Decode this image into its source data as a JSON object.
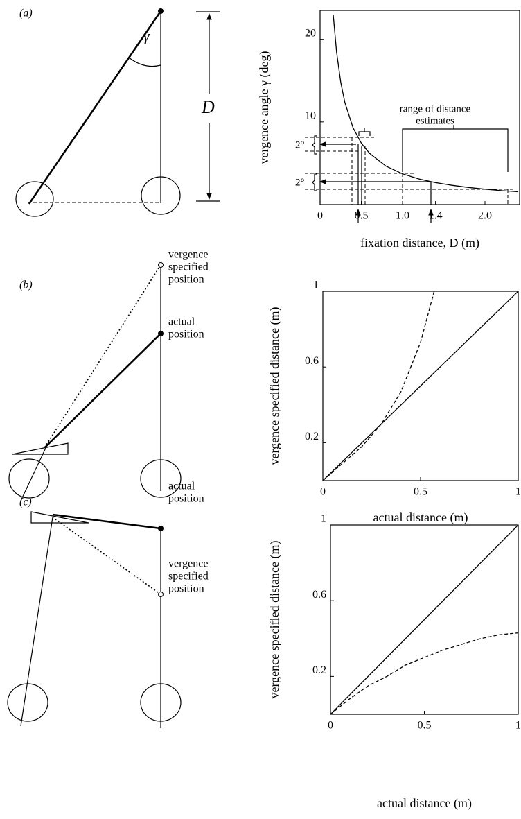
{
  "diagrams": [
    {
      "label": "(a)",
      "angle": "γ",
      "distance": "D"
    },
    {
      "label": "(b)",
      "vergence_label": [
        "vergence",
        "specified",
        "position"
      ],
      "actual_label": [
        "actual",
        "position"
      ]
    },
    {
      "label": "(c)",
      "actual_label": [
        "actual",
        "position"
      ],
      "vergence_label": [
        "vergence",
        "specified",
        "position"
      ]
    }
  ],
  "chart_data": [
    {
      "type": "line",
      "x_label": "fixation distance, D (m)",
      "y_label": "vergence angle γ (deg)",
      "xlim": [
        0,
        2.42
      ],
      "ylim": [
        0,
        23.5
      ],
      "xticks": [
        0,
        0.5,
        {
          "value": 1,
          "label": "1.0"
        },
        1.4,
        {
          "value": 2,
          "label": "2.0"
        }
      ],
      "yticks": [
        10,
        20
      ],
      "annotations": [
        "range of distance",
        "estimates"
      ],
      "bracket_labels": [
        "2°",
        "2°"
      ],
      "series": [
        {
          "line_style": "solid",
          "x": [
            0.16,
            0.2,
            0.25,
            0.3,
            0.4,
            0.5,
            0.6,
            0.8,
            1.0,
            1.2,
            1.4,
            1.6,
            1.8,
            2.0,
            2.2,
            2.4
          ],
          "values": [
            22.96,
            18.46,
            14.81,
            12.37,
            9.29,
            7.44,
            6.2,
            4.65,
            3.72,
            3.1,
            2.66,
            2.33,
            2.07,
            1.86,
            1.69,
            1.55
          ]
        }
      ]
    },
    {
      "type": "line",
      "x_label": "actual distance (m)",
      "y_label": "vergence specified distance (m)",
      "xlim": [
        0,
        1
      ],
      "ylim": [
        0,
        1
      ],
      "xticks": [
        0,
        0.5,
        1
      ],
      "yticks": [
        0.2,
        0.6,
        1
      ],
      "series": [
        {
          "line_style": "solid",
          "x": [
            0,
            1
          ],
          "values": [
            0,
            1
          ]
        },
        {
          "line_style": "dashed",
          "x": [
            0,
            0.1,
            0.2,
            0.3,
            0.4,
            0.45,
            0.5,
            0.57
          ],
          "values": [
            0,
            0.09,
            0.18,
            0.3,
            0.47,
            0.6,
            0.73,
            1.0
          ]
        }
      ]
    },
    {
      "type": "line",
      "x_label": "actual distance (m)",
      "y_label": "vergence specified distance (m)",
      "xlim": [
        0,
        1
      ],
      "ylim": [
        0,
        1
      ],
      "xticks": [
        0,
        0.5,
        1
      ],
      "yticks": [
        0.2,
        0.6,
        1
      ],
      "series": [
        {
          "line_style": "solid",
          "x": [
            0,
            1
          ],
          "values": [
            0,
            1
          ]
        },
        {
          "line_style": "dashed",
          "x": [
            0,
            0.1,
            0.2,
            0.3,
            0.4,
            0.5,
            0.6,
            0.7,
            0.8,
            0.9,
            1.0
          ],
          "values": [
            0,
            0.08,
            0.15,
            0.2,
            0.26,
            0.3,
            0.34,
            0.37,
            0.4,
            0.42,
            0.43
          ]
        }
      ]
    }
  ]
}
